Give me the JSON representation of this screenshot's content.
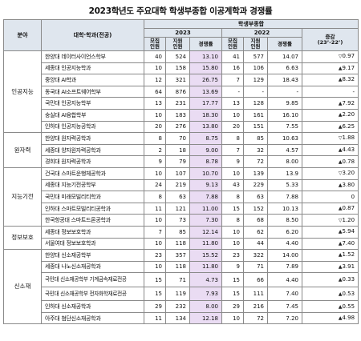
{
  "title": "2023학년도 주요대학 학생부종합 이공계학과 경쟁률",
  "headers": {
    "field": "분야",
    "dept": "대학·학과(전공)",
    "group": "학생부종합",
    "y2023": "2023",
    "y2022": "2022",
    "quota": "모집\n인원",
    "applicants": "지원\n인원",
    "rate": "경쟁률",
    "change": "증감\n(23’-22’)"
  },
  "rows": [
    {
      "field": "인공지능",
      "dept": "한양대 데이터사이언스학부",
      "q23": "40",
      "a23": "524",
      "r23": "13.10",
      "q22": "41",
      "a22": "577",
      "r22": "14.07",
      "dir": "down",
      "chg": "0.97"
    },
    {
      "field": "",
      "dept": "세종대 인공지능학과",
      "q23": "10",
      "a23": "158",
      "r23": "15.80",
      "q22": "16",
      "a22": "106",
      "r22": "6.63",
      "dir": "up",
      "chg": "9.17"
    },
    {
      "field": "",
      "dept": "중앙대 AI학과",
      "q23": "12",
      "a23": "321",
      "r23": "26.75",
      "q22": "7",
      "a22": "129",
      "r22": "18.43",
      "dir": "up",
      "chg": "8.32"
    },
    {
      "field": "",
      "dept": "동국대 AI소프트웨어학부",
      "q23": "64",
      "a23": "876",
      "r23": "13.69",
      "q22": "-",
      "a22": "-",
      "r22": "-",
      "dir": "",
      "chg": "-"
    },
    {
      "field": "",
      "dept": "국민대 인공지능학부",
      "q23": "13",
      "a23": "231",
      "r23": "17.77",
      "q22": "13",
      "a22": "128",
      "r22": "9.85",
      "dir": "up",
      "chg": "7.92"
    },
    {
      "field": "",
      "dept": "숭실대 AI융합학부",
      "q23": "10",
      "a23": "183",
      "r23": "18.30",
      "q22": "10",
      "a22": "161",
      "r22": "16.10",
      "dir": "up",
      "chg": "2.20"
    },
    {
      "field": "",
      "dept": "인하대 인공지능공학과",
      "q23": "20",
      "a23": "276",
      "r23": "13.80",
      "q22": "20",
      "a22": "151",
      "r22": "7.55",
      "dir": "up",
      "chg": "6.25"
    },
    {
      "field": "원자력",
      "dept": "한양대 원자력공학과",
      "q23": "8",
      "a23": "70",
      "r23": "8.75",
      "q22": "8",
      "a22": "85",
      "r22": "10.63",
      "dir": "down",
      "chg": "1.88"
    },
    {
      "field": "",
      "dept": "세종대 양자원자력공학과",
      "q23": "2",
      "a23": "18",
      "r23": "9.00",
      "q22": "7",
      "a22": "32",
      "r22": "4.57",
      "dir": "up",
      "chg": "4.43"
    },
    {
      "field": "",
      "dept": "경희대 원자력공학과",
      "q23": "9",
      "a23": "79",
      "r23": "8.78",
      "q22": "9",
      "a22": "72",
      "r22": "8.00",
      "dir": "up",
      "chg": "0.78"
    },
    {
      "field": "지능기전",
      "dept": "건국대 스마트운행체공학과",
      "q23": "10",
      "a23": "107",
      "r23": "10.70",
      "q22": "10",
      "a22": "139",
      "r22": "13.9",
      "dir": "down",
      "chg": "3.20"
    },
    {
      "field": "",
      "dept": "세종대 지능기전공학부",
      "q23": "24",
      "a23": "219",
      "r23": "9.13",
      "q22": "43",
      "a22": "229",
      "r22": "5.33",
      "dir": "up",
      "chg": "3.80"
    },
    {
      "field": "",
      "dept": "국민대 미래모빌리티학과",
      "q23": "8",
      "a23": "63",
      "r23": "7.88",
      "q22": "8",
      "a22": "63",
      "r22": "7.88",
      "dir": "",
      "chg": "0"
    },
    {
      "field": "",
      "dept": "인하대 스마트모빌리티공학과",
      "q23": "11",
      "a23": "121",
      "r23": "11.00",
      "q22": "15",
      "a22": "152",
      "r22": "10.13",
      "dir": "up",
      "chg": "0.87"
    },
    {
      "field": "",
      "dept": "한국항공대 스마트드론공학과",
      "q23": "10",
      "a23": "73",
      "r23": "7.30",
      "q22": "8",
      "a22": "68",
      "r22": "8.50",
      "dir": "down",
      "chg": "1.20"
    },
    {
      "field": "정보보호",
      "dept": "세종대 정보보호학과",
      "q23": "7",
      "a23": "85",
      "r23": "12.14",
      "q22": "10",
      "a22": "62",
      "r22": "6.20",
      "dir": "up",
      "chg": "5.94"
    },
    {
      "field": "",
      "dept": "서울여대 정보보호학과",
      "q23": "10",
      "a23": "118",
      "r23": "11.80",
      "q22": "10",
      "a22": "44",
      "r22": "4.40",
      "dir": "up",
      "chg": "7.40"
    },
    {
      "field": "신소재",
      "dept": "한양대 신소재공학부",
      "q23": "23",
      "a23": "357",
      "r23": "15.52",
      "q22": "23",
      "a22": "322",
      "r22": "14.00",
      "dir": "up",
      "chg": "1.52"
    },
    {
      "field": "",
      "dept": "세종대 나노신소재공학과",
      "q23": "10",
      "a23": "118",
      "r23": "11.80",
      "q22": "9",
      "a22": "71",
      "r22": "7.89",
      "dir": "up",
      "chg": "3.91"
    },
    {
      "field": "",
      "dept": "국민대 신소재공학부 기계금속재료전공",
      "q23": "15",
      "a23": "71",
      "r23": "4.73",
      "q22": "15",
      "a22": "66",
      "r22": "4.40",
      "dir": "up",
      "chg": "0.33"
    },
    {
      "field": "",
      "dept": "국민대 신소재공학부 전자화학재료전공",
      "q23": "15",
      "a23": "119",
      "r23": "7.93",
      "q22": "15",
      "a22": "111",
      "r22": "7.40",
      "dir": "up",
      "chg": "0.53"
    },
    {
      "field": "",
      "dept": "인하대 신소재공학과",
      "q23": "29",
      "a23": "232",
      "r23": "8.00",
      "q22": "29",
      "a22": "216",
      "r22": "7.45",
      "dir": "up",
      "chg": "0.55"
    },
    {
      "field": "",
      "dept": "아주대 첨단신소재공학과",
      "q23": "11",
      "a23": "134",
      "r23": "12.18",
      "q22": "10",
      "a22": "72",
      "r22": "7.20",
      "dir": "up",
      "chg": "4.98"
    }
  ],
  "groups": [
    {
      "label": "인공지능",
      "start": 0,
      "span": 7
    },
    {
      "label": "원자력",
      "start": 7,
      "span": 3
    },
    {
      "label": "지능기전",
      "start": 10,
      "span": 5
    },
    {
      "label": "정보보호",
      "start": 15,
      "span": 2
    },
    {
      "label": "신소재",
      "start": 17,
      "span": 6
    }
  ],
  "colors": {
    "header_bg": "#dfe6ee",
    "rate_bg": "#eadcf3",
    "border": "#8a8a8a"
  },
  "icons": {
    "up": "▲",
    "down": "▽"
  }
}
